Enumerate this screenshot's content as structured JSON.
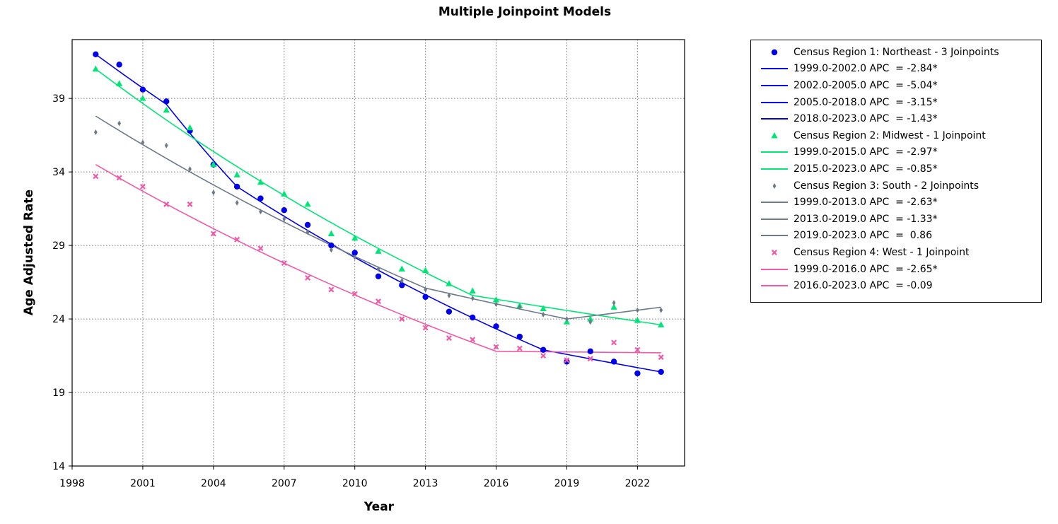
{
  "chart_data": {
    "type": "line",
    "title": "Multiple Joinpoint Models",
    "xlabel": "Year",
    "ylabel": "Age Adjusted Rate",
    "xlim": [
      1998,
      2024
    ],
    "ylim": [
      14,
      43
    ],
    "xticks": [
      1998,
      2001,
      2004,
      2007,
      2010,
      2013,
      2016,
      2019,
      2022
    ],
    "yticks": [
      14,
      19,
      24,
      29,
      34,
      39
    ],
    "grid": true,
    "legend_position": "right",
    "series": [
      {
        "name": "Census Region 1: Northeast - 3 Joinpoints",
        "color": "#0000ee",
        "marker": "circle",
        "x": [
          1999,
          2000,
          2001,
          2002,
          2003,
          2004,
          2005,
          2006,
          2007,
          2008,
          2009,
          2010,
          2011,
          2012,
          2013,
          2014,
          2015,
          2016,
          2017,
          2018,
          2019,
          2020,
          2021,
          2022,
          2023
        ],
        "y": [
          42.0,
          41.3,
          39.6,
          38.8,
          36.8,
          34.5,
          33.0,
          32.2,
          31.4,
          30.4,
          29.0,
          28.5,
          26.9,
          26.3,
          25.5,
          24.5,
          24.1,
          23.5,
          22.8,
          21.9,
          21.1,
          21.8,
          21.1,
          20.3,
          20.4
        ],
        "fit_x": [
          1999,
          2002,
          2005,
          2018,
          2023
        ],
        "fit_y": [
          42.0,
          38.6,
          33.0,
          21.9,
          20.4
        ],
        "segments": [
          "1999.0-2002.0 APC  = -2.84*",
          "2002.0-2005.0 APC  = -5.04*",
          "2005.0-2018.0 APC  = -3.15*",
          "2018.0-2023.0 APC  = -1.43*"
        ]
      },
      {
        "name": "Census Region 2: Midwest - 1 Joinpoint",
        "color": "#00e676",
        "marker": "triangle",
        "x": [
          1999,
          2000,
          2001,
          2002,
          2003,
          2004,
          2005,
          2006,
          2007,
          2008,
          2009,
          2010,
          2011,
          2012,
          2013,
          2014,
          2015,
          2016,
          2017,
          2018,
          2019,
          2020,
          2021,
          2022,
          2023
        ],
        "y": [
          41.0,
          40.0,
          39.0,
          38.2,
          37.0,
          34.5,
          33.8,
          33.3,
          32.5,
          31.8,
          29.8,
          29.5,
          28.6,
          27.4,
          27.3,
          26.4,
          25.9,
          25.3,
          24.9,
          24.7,
          23.8,
          24.0,
          24.8,
          23.9,
          23.6
        ],
        "fit_x": [
          1999,
          2015,
          2023
        ],
        "fit_y": [
          41.0,
          25.6,
          23.6
        ],
        "segments": [
          "1999.0-2015.0 APC  = -2.97*",
          "2015.0-2023.0 APC  = -0.85*"
        ]
      },
      {
        "name": "Census Region 3: South - 2 Joinpoints",
        "color": "#6c7a8a",
        "marker": "diamond",
        "x": [
          1999,
          2000,
          2001,
          2002,
          2003,
          2004,
          2005,
          2006,
          2007,
          2008,
          2009,
          2010,
          2011,
          2012,
          2013,
          2014,
          2015,
          2016,
          2017,
          2018,
          2019,
          2020,
          2021,
          2022,
          2023
        ],
        "y": [
          36.7,
          37.3,
          36.0,
          35.8,
          34.2,
          32.6,
          31.9,
          31.3,
          30.8,
          29.9,
          28.7,
          28.2,
          27.4,
          26.6,
          26.0,
          25.6,
          25.4,
          25.0,
          24.8,
          24.3,
          24.0,
          23.8,
          25.1,
          24.6,
          24.6
        ],
        "fit_x": [
          1999,
          2013,
          2019,
          2023
        ],
        "fit_y": [
          37.8,
          26.1,
          24.0,
          24.8
        ],
        "segments": [
          "1999.0-2013.0 APC  = -2.63*",
          "2013.0-2019.0 APC  = -1.33*",
          "2019.0-2023.0 APC  =  0.86"
        ]
      },
      {
        "name": "Census Region 4: West - 1 Joinpoint",
        "color": "#f05aa8",
        "marker": "x",
        "x": [
          1999,
          2000,
          2001,
          2002,
          2003,
          2004,
          2005,
          2006,
          2007,
          2008,
          2009,
          2010,
          2011,
          2012,
          2013,
          2014,
          2015,
          2016,
          2017,
          2018,
          2019,
          2020,
          2021,
          2022,
          2023
        ],
        "y": [
          33.7,
          33.6,
          33.0,
          31.8,
          31.8,
          29.8,
          29.4,
          28.8,
          27.8,
          26.8,
          26.0,
          25.7,
          25.2,
          24.0,
          23.4,
          22.7,
          22.6,
          22.1,
          22.0,
          21.5,
          21.2,
          21.3,
          22.4,
          21.9,
          21.4
        ],
        "fit_x": [
          1999,
          2016,
          2023
        ],
        "fit_y": [
          34.5,
          21.8,
          21.7
        ],
        "segments": [
          "1999.0-2016.0 APC  = -2.65*",
          "2016.0-2023.0 APC  = -0.09"
        ]
      }
    ]
  }
}
